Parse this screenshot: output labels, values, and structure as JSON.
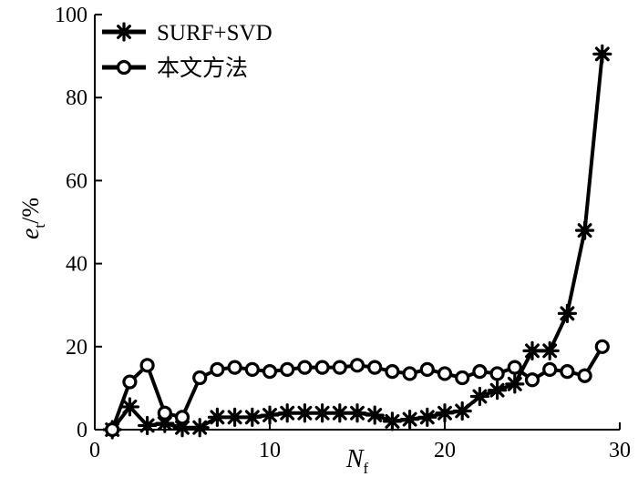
{
  "chart_data": {
    "type": "line",
    "xlabel": {
      "main": "N",
      "sub": "f"
    },
    "ylabel": {
      "main": "e",
      "sub": "t",
      "suffix": "/%"
    },
    "xlim": [
      0,
      30
    ],
    "ylim": [
      0,
      100
    ],
    "xticks": [
      0,
      10,
      20,
      30
    ],
    "yticks": [
      0,
      20,
      40,
      60,
      80,
      100
    ],
    "grid": false,
    "legend_position": "top-left",
    "series": [
      {
        "name": "SURF+SVD",
        "marker": "star",
        "color": "#000000",
        "x": [
          1,
          2,
          3,
          4,
          5,
          6,
          7,
          8,
          9,
          10,
          11,
          12,
          13,
          14,
          15,
          16,
          17,
          18,
          19,
          20,
          21,
          22,
          23,
          24,
          25,
          26,
          27,
          28,
          29
        ],
        "y": [
          0,
          5.5,
          1,
          1.5,
          0.5,
          0.5,
          3,
          3,
          3,
          3.5,
          4,
          4,
          4,
          4,
          4,
          3.5,
          2,
          2.5,
          3,
          4,
          4.5,
          8,
          9.5,
          11,
          19,
          19,
          28,
          48,
          90.5
        ]
      },
      {
        "name": "本文方法",
        "marker": "circle-open",
        "color": "#000000",
        "x": [
          1,
          2,
          3,
          4,
          5,
          6,
          7,
          8,
          9,
          10,
          11,
          12,
          13,
          14,
          15,
          16,
          17,
          18,
          19,
          20,
          21,
          22,
          23,
          24,
          25,
          26,
          27,
          28,
          29
        ],
        "y": [
          0,
          11.5,
          15.5,
          4,
          3,
          12.5,
          14.5,
          15,
          14.5,
          14,
          14.5,
          15,
          15,
          15,
          15.5,
          15,
          14,
          13.5,
          14.5,
          13.5,
          12.5,
          14,
          13.5,
          15,
          12,
          14.5,
          14,
          13,
          20
        ]
      }
    ]
  }
}
